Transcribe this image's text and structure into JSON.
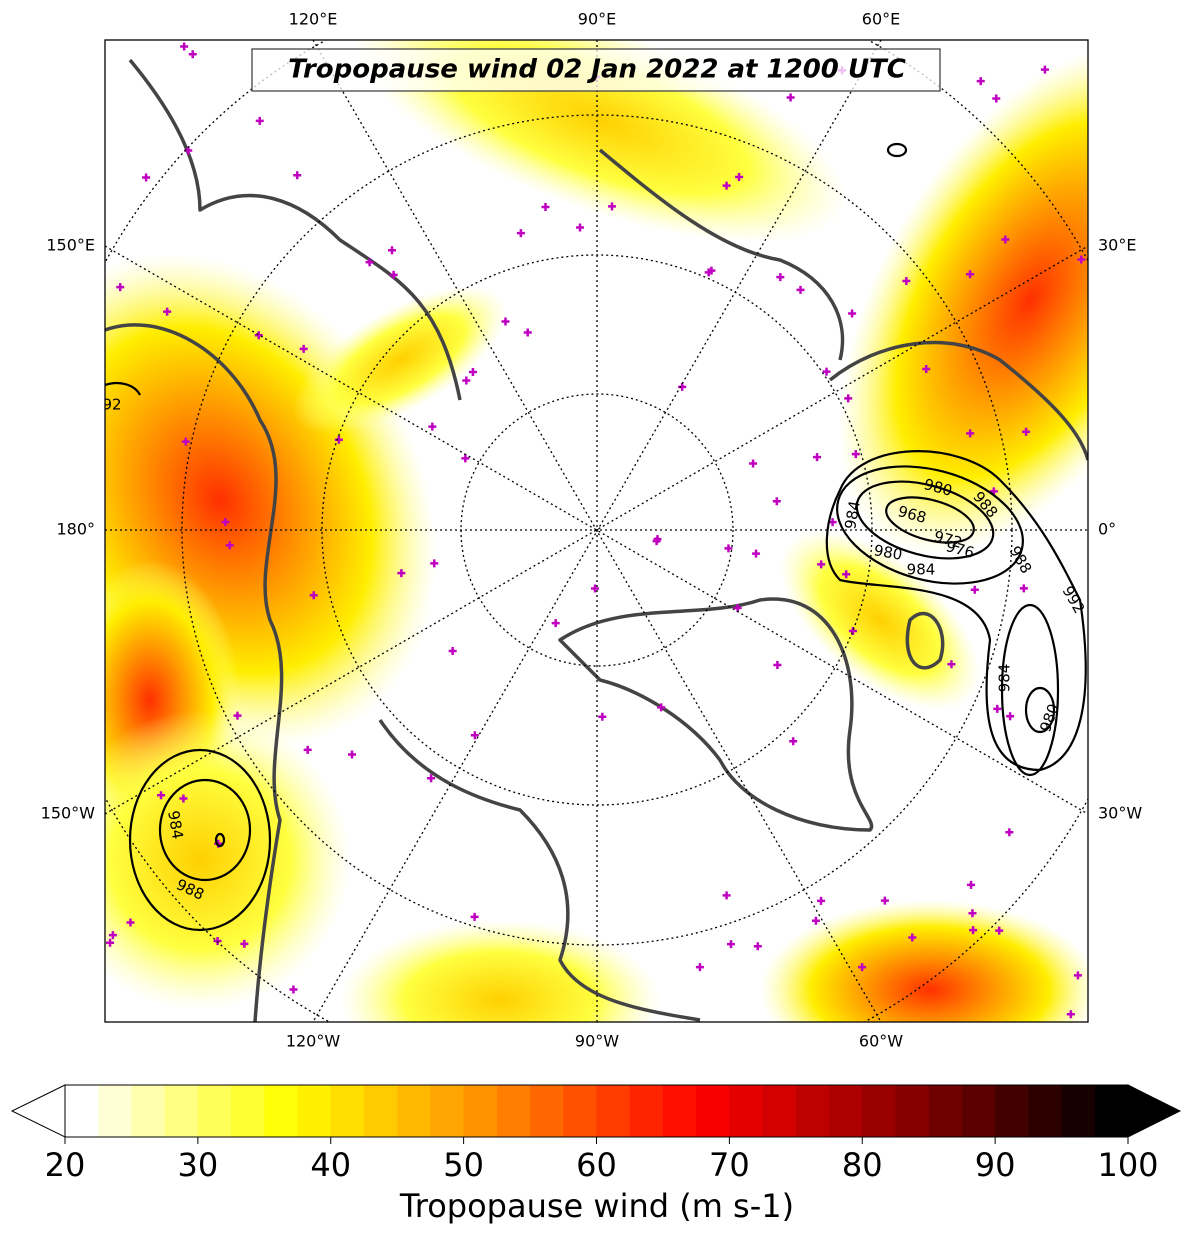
{
  "map": {
    "title": "Tropopause wind 02 Jan 2022 at 1200 UTC",
    "meridian_labels": {
      "top": [
        "120°E",
        "90°E",
        "60°E"
      ],
      "left": [
        "150°E",
        "180°",
        "150°W"
      ],
      "right": [
        "30°E",
        "0°",
        "30°W"
      ],
      "bottom": [
        "120°W",
        "90°W",
        "60°W"
      ]
    },
    "contour_labels": [
      "92",
      "984",
      "980",
      "968",
      "972",
      "976",
      "988",
      "980",
      "984",
      "988",
      "992",
      "984",
      "980",
      "984",
      "988"
    ],
    "colorbar": {
      "label": "Tropopause wind (m s-1)",
      "lim": [
        20,
        100
      ],
      "ticks": [
        20,
        30,
        40,
        50,
        60,
        70,
        80,
        90,
        100
      ],
      "extend": "both",
      "colors": [
        "#ffffff",
        "#ffff00",
        "#ff8c00",
        "#ff0000",
        "#8b0000",
        "#000000"
      ]
    }
  }
}
